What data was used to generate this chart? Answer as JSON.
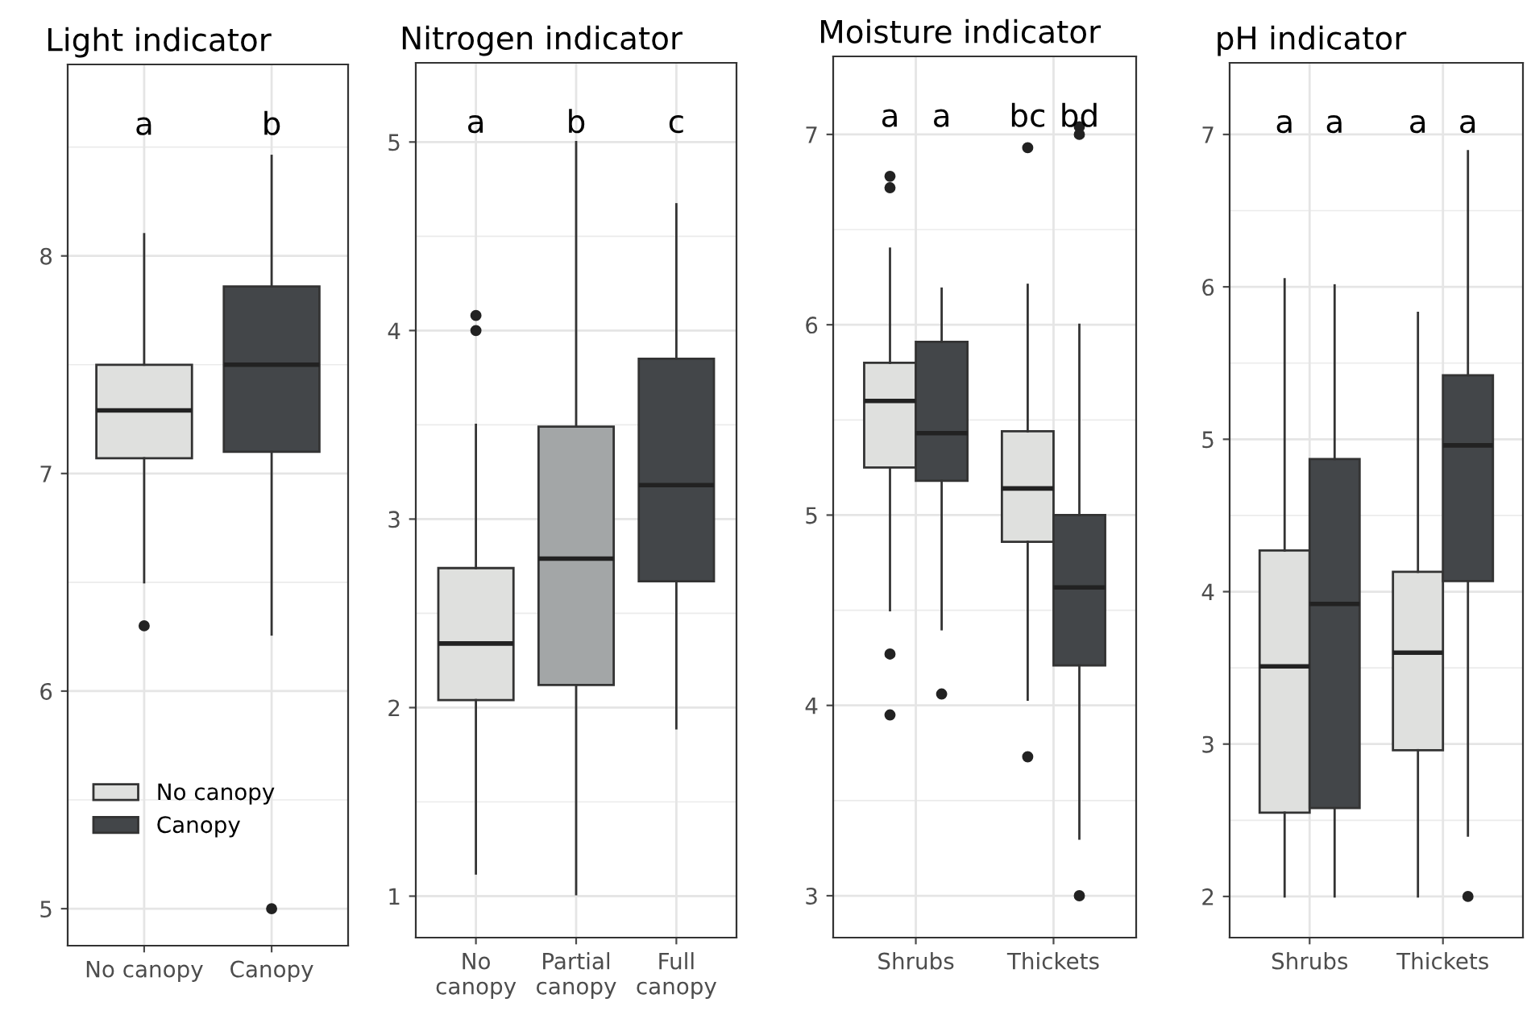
{
  "chart_data": [
    {
      "type": "box",
      "title": "Light indicator",
      "categories": [
        "No canopy",
        "Canopy"
      ],
      "ylim": [
        4.83,
        8.88
      ],
      "yticks": [
        5,
        6,
        7,
        8
      ],
      "grid": true,
      "legend": "bottom left",
      "series": [
        {
          "name": "No canopy",
          "color": "#dfe0de",
          "boxes": [
            {
              "low": 6.5,
              "q1": 7.07,
              "median": 7.29,
              "q3": 7.5,
              "high": 8.1,
              "outliers": [
                6.3
              ]
            },
            null
          ]
        },
        {
          "name": "Canopy",
          "color": "#434649",
          "boxes": [
            null,
            {
              "low": 6.26,
              "q1": 7.1,
              "median": 7.5,
              "q3": 7.86,
              "high": 8.46,
              "outliers": [
                5.0
              ]
            }
          ]
        }
      ],
      "annotations": [
        "a",
        "b"
      ]
    },
    {
      "type": "box",
      "title": "Nitrogen indicator",
      "categories": [
        "No\ncanopy",
        "Partial\ncanopy",
        "Full\ncanopy"
      ],
      "ylim": [
        0.78,
        5.42
      ],
      "yticks": [
        1,
        2,
        3,
        4,
        5
      ],
      "grid": true,
      "series": [
        {
          "color": "#dfe0de",
          "boxes": [
            {
              "low": 1.12,
              "q1": 2.04,
              "median": 2.34,
              "q3": 2.74,
              "high": 3.5,
              "outliers": [
                4.0,
                4.08
              ]
            },
            null,
            null
          ]
        },
        {
          "color": "#a3a6a7",
          "boxes": [
            null,
            {
              "low": 1.01,
              "q1": 2.12,
              "median": 2.79,
              "q3": 3.49,
              "high": 5.0
            },
            null
          ]
        },
        {
          "color": "#434649",
          "boxes": [
            null,
            null,
            {
              "low": 1.89,
              "q1": 2.67,
              "median": 3.18,
              "q3": 3.85,
              "high": 4.67
            }
          ]
        }
      ],
      "annotations": [
        "a",
        "b",
        "c"
      ]
    },
    {
      "type": "box",
      "title": "Moisture indicator",
      "categories": [
        "Shrubs",
        "Thickets"
      ],
      "ylim": [
        2.78,
        7.41
      ],
      "yticks": [
        3,
        4,
        5,
        6,
        7
      ],
      "grid": true,
      "series": [
        {
          "color": "#dfe0de",
          "boxes": [
            {
              "low": 4.5,
              "q1": 5.25,
              "median": 5.6,
              "q3": 5.8,
              "high": 6.4,
              "outliers": [
                6.78,
                6.72,
                4.27,
                3.95
              ]
            },
            {
              "low": 4.03,
              "q1": 4.86,
              "median": 5.14,
              "q3": 5.44,
              "high": 6.21,
              "outliers": [
                6.93,
                3.73
              ]
            }
          ]
        },
        {
          "color": "#434649",
          "boxes": [
            {
              "low": 4.4,
              "q1": 5.18,
              "median": 5.43,
              "q3": 5.91,
              "high": 6.19,
              "outliers": [
                4.06
              ]
            },
            {
              "low": 3.3,
              "q1": 4.21,
              "median": 4.62,
              "q3": 5.0,
              "high": 6.0,
              "outliers": [
                7.04,
                7.0,
                3.0
              ]
            }
          ]
        }
      ],
      "annotations": [
        "a",
        "a",
        "bc",
        "bd"
      ]
    },
    {
      "type": "box",
      "title": "pH indicator",
      "categories": [
        "Shrubs",
        "Thickets"
      ],
      "ylim": [
        1.73,
        7.47
      ],
      "yticks": [
        2,
        3,
        4,
        5,
        6,
        7
      ],
      "grid": true,
      "series": [
        {
          "color": "#dfe0de",
          "boxes": [
            {
              "low": 2.0,
              "q1": 2.55,
              "median": 3.51,
              "q3": 4.27,
              "high": 6.05
            },
            {
              "low": 2.0,
              "q1": 2.96,
              "median": 3.6,
              "q3": 4.13,
              "high": 5.83
            }
          ]
        },
        {
          "color": "#434649",
          "boxes": [
            {
              "low": 2.0,
              "q1": 2.58,
              "median": 3.92,
              "q3": 4.87,
              "high": 6.01
            },
            {
              "low": 2.4,
              "q1": 4.07,
              "median": 4.96,
              "q3": 5.42,
              "high": 6.89,
              "outliers": [
                2.0
              ]
            }
          ]
        }
      ],
      "annotations": [
        "a",
        "a",
        "a",
        "a"
      ]
    }
  ]
}
